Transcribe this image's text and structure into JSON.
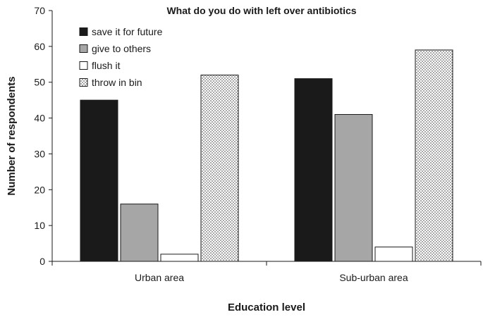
{
  "chart_data": {
    "type": "bar",
    "title": "What do you do with left over antibiotics",
    "xlabel": "Education level",
    "ylabel": "Number of respondents",
    "categories": [
      "Urban area",
      "Sub-urban area"
    ],
    "ylim": [
      0,
      70
    ],
    "yticks": [
      0,
      10,
      20,
      30,
      40,
      50,
      60,
      70
    ],
    "grid": false,
    "legend_position": "top-left",
    "series": [
      {
        "name": "save it for future",
        "values": [
          45,
          51
        ],
        "fill": "#1a1a1a",
        "pattern": "solid"
      },
      {
        "name": "give to others",
        "values": [
          16,
          41
        ],
        "fill": "#a6a6a6",
        "pattern": "solid"
      },
      {
        "name": "flush it",
        "values": [
          2,
          4
        ],
        "fill": "#ffffff",
        "pattern": "solid"
      },
      {
        "name": "throw in bin",
        "values": [
          52,
          59
        ],
        "fill": "#ffffff",
        "pattern": "dots"
      }
    ]
  }
}
